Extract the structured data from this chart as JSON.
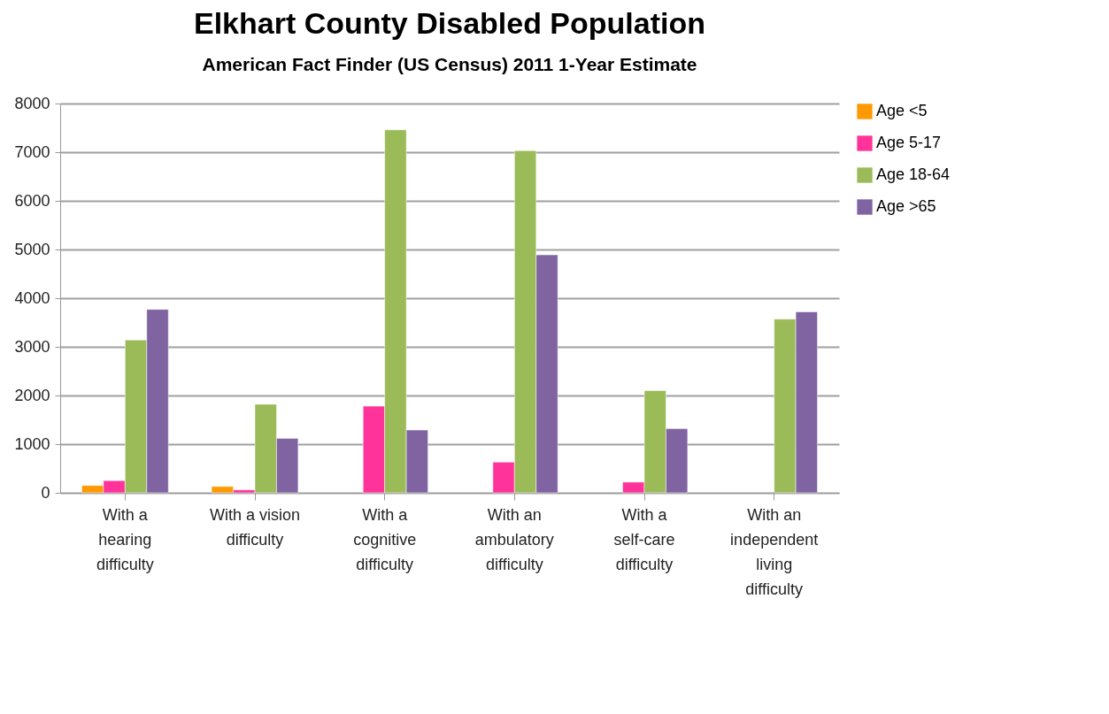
{
  "chart_data": {
    "type": "bar",
    "title": "Elkhart County Disabled Population",
    "subtitle": "American Fact Finder (US Census) 2011 1-Year Estimate",
    "categories": [
      "With a hearing difficulty",
      "With a vision difficulty",
      "With a cognitive difficulty",
      "With an ambulatory difficulty",
      "With a self-care difficulty",
      "With an independent living difficulty"
    ],
    "series": [
      {
        "name": "Age <5",
        "color": "#ff9900",
        "values": [
          150,
          130,
          null,
          null,
          null,
          null
        ]
      },
      {
        "name": "Age 5-17",
        "color": "#ff3399",
        "values": [
          250,
          60,
          1780,
          630,
          220,
          null
        ]
      },
      {
        "name": "Age 18-64",
        "color": "#9bbb59",
        "values": [
          3140,
          1820,
          7460,
          7030,
          2100,
          3570
        ]
      },
      {
        "name": "Age >65",
        "color": "#8064a2",
        "values": [
          3770,
          1120,
          1290,
          4890,
          1320,
          3720
        ]
      }
    ],
    "ylim": [
      0,
      8000
    ],
    "yticks": [
      0,
      1000,
      2000,
      3000,
      4000,
      5000,
      6000,
      7000,
      8000
    ],
    "grid": "y",
    "legend": "right"
  }
}
